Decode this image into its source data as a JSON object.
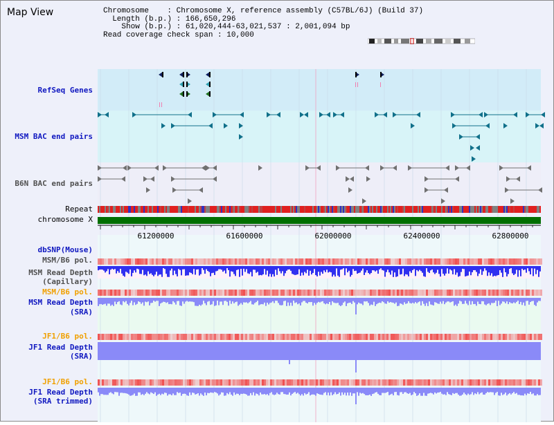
{
  "title": "Map View",
  "info": {
    "chromosome_label": "Chromosome",
    "chromosome_value": "Chromosome X, reference assembly (C57BL/6J) (Build 37)",
    "length_label": "Length (b.p.)",
    "length_value": "166,650,296",
    "show_label": "Show (b.p.)",
    "show_value": "61,020,444-63,021,537 : 2,001,094 bp",
    "span_label": "Read coverage check span",
    "span_value": "10,000"
  },
  "tracks": {
    "refseq": "RefSeq Genes",
    "msm_bac": "MSM BAC end pairs",
    "b6n_bac": "B6N BAC end pairs",
    "repeat": "Repeat",
    "chromosome": "chromosome X",
    "dbsnp": "dbSNP(Mouse)",
    "msm_pol_1": "MSM/B6 pol.",
    "msm_depth_cap_1": "MSM Read Depth",
    "msm_depth_cap_2": "(Capillary)",
    "msm_pol_2": "MSM/B6 pol.",
    "msm_depth_sra_1": "MSM Read Depth",
    "msm_depth_sra_2": "(SRA)",
    "jf1_pol_1": "JF1/B6 pol.",
    "jf1_depth_1": "JF1 Read Depth",
    "jf1_depth_2": "(SRA)",
    "jf1_pol_2": "JF1/B6 pol.",
    "jf1_trim_1": "JF1 Read Depth",
    "jf1_trim_2": "(SRA trimmed)"
  },
  "axis": {
    "ticks": [
      "61200000",
      "61600000",
      "62000000",
      "62400000",
      "62800000"
    ]
  },
  "colors": {
    "panel_bg": "#eef0fa",
    "refseq_bg": "#d2ecf8",
    "msm_bg": "#d8f4f8",
    "b6n_bg": "#eeeef8",
    "chromosome_bar": "#006e00",
    "gene_blue": "#102060",
    "gene_cyan": "#30a0b0",
    "gene_green": "#207020",
    "msm_feature": "#10708a",
    "b6n_feature": "#707070",
    "depth_blue": "#3030f0",
    "depth_light": "#8a8af8",
    "pol_red": "#f05050"
  }
}
